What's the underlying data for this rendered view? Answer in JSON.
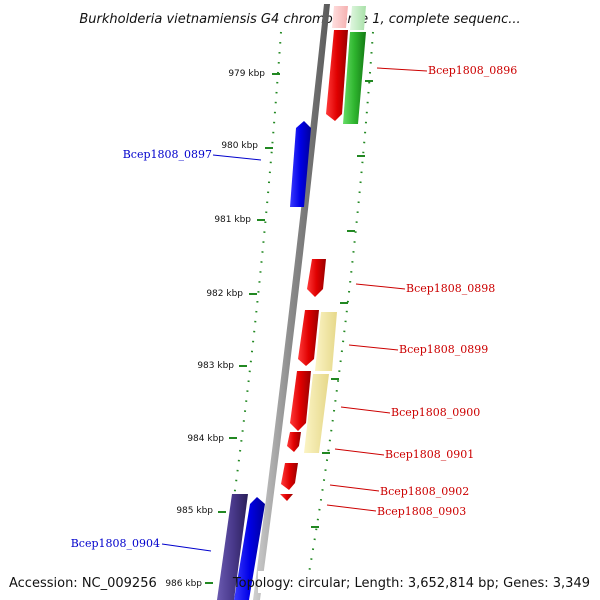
{
  "title": "Burkholderia vietnamiensis G4 chromosome 1, complete sequenc...",
  "footer": {
    "accession": "Accession: NC_009256",
    "topology": "Topology: circular; Length: 3,652,814 bp; Genes: 3,349"
  },
  "ruler": [
    {
      "label": "979 kbp"
    },
    {
      "label": "980 kbp"
    },
    {
      "label": "981 kbp"
    },
    {
      "label": "982 kbp"
    },
    {
      "label": "983 kbp"
    },
    {
      "label": "984 kbp"
    },
    {
      "label": "985 kbp"
    },
    {
      "label": "986 kbp"
    }
  ],
  "genes": [
    {
      "name": "Bcep1808_0896",
      "color": "#cc0000"
    },
    {
      "name": "Bcep1808_0897",
      "color": "#0000cc"
    },
    {
      "name": "Bcep1808_0898",
      "color": "#cc0000"
    },
    {
      "name": "Bcep1808_0899",
      "color": "#cc0000"
    },
    {
      "name": "Bcep1808_0900",
      "color": "#cc0000"
    },
    {
      "name": "Bcep1808_0901",
      "color": "#cc0000"
    },
    {
      "name": "Bcep1808_0902",
      "color": "#cc0000"
    },
    {
      "name": "Bcep1808_0903",
      "color": "#cc0000"
    },
    {
      "name": "Bcep1808_0904",
      "color": "#0000cc"
    }
  ],
  "colors": {
    "forward_gene": "#e00000",
    "reverse_gene": "#0000e6",
    "rna_gene": "#33bb33",
    "pseudo_gene": "#f0e6a0",
    "secondary_gene": "#4a3a8c",
    "tick": "#228822",
    "backbone": "#888888"
  }
}
